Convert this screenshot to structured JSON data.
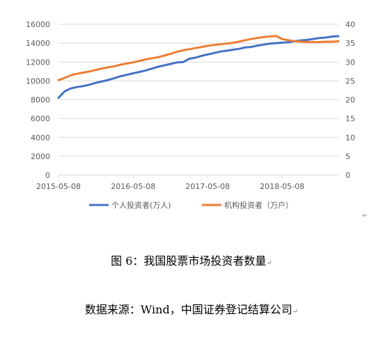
{
  "chart_data": {
    "type": "line",
    "x_ticks": [
      "2015-05-08",
      "2016-05-08",
      "2017-05-08",
      "2018-05-08"
    ],
    "x": [
      "2015-05-08",
      "2015-06-08",
      "2015-07-08",
      "2015-08-08",
      "2015-09-08",
      "2015-10-08",
      "2015-11-08",
      "2015-12-08",
      "2016-01-08",
      "2016-02-08",
      "2016-03-08",
      "2016-04-08",
      "2016-05-08",
      "2016-06-08",
      "2016-07-08",
      "2016-08-08",
      "2016-09-08",
      "2016-10-08",
      "2016-11-08",
      "2016-12-08",
      "2017-01-08",
      "2017-02-08",
      "2017-03-08",
      "2017-04-08",
      "2017-05-08",
      "2017-06-08",
      "2017-07-08",
      "2017-08-08",
      "2017-09-08",
      "2017-10-08",
      "2017-11-08",
      "2017-12-08",
      "2018-01-08",
      "2018-02-08",
      "2018-03-08",
      "2018-04-08",
      "2018-05-08",
      "2018-06-08",
      "2018-07-08",
      "2018-08-08",
      "2018-09-08",
      "2018-10-08",
      "2018-11-08",
      "2018-12-08",
      "2019-01-08",
      "2019-02-08"
    ],
    "y_left_ticks": [
      "0",
      "2000",
      "4000",
      "6000",
      "8000",
      "10000",
      "12000",
      "14000",
      "16000"
    ],
    "y_right_ticks": [
      "0",
      "5",
      "10",
      "15",
      "20",
      "25",
      "30",
      "35",
      "40"
    ],
    "ylim_left": [
      0,
      16000
    ],
    "ylim_right": [
      0,
      40
    ],
    "series": [
      {
        "name": "个人投资者(万人)",
        "axis": "left",
        "color": "#4472C4",
        "values": [
          8200,
          8900,
          9200,
          9350,
          9450,
          9600,
          9800,
          9950,
          10100,
          10300,
          10500,
          10650,
          10800,
          10950,
          11100,
          11300,
          11500,
          11650,
          11800,
          11950,
          12000,
          12350,
          12450,
          12650,
          12800,
          12950,
          13100,
          13200,
          13300,
          13400,
          13550,
          13600,
          13750,
          13850,
          13950,
          14000,
          14050,
          14100,
          14200,
          14300,
          14350,
          14450,
          14550,
          14600,
          14700,
          14750
        ]
      },
      {
        "name": "机构投资者（万户）",
        "axis": "right",
        "color": "#ED7D31",
        "values": [
          25.2,
          25.8,
          26.5,
          26.9,
          27.2,
          27.5,
          27.9,
          28.3,
          28.6,
          28.9,
          29.3,
          29.6,
          29.9,
          30.3,
          30.7,
          31.0,
          31.3,
          31.7,
          32.2,
          32.7,
          33.1,
          33.4,
          33.7,
          34.0,
          34.3,
          34.5,
          34.7,
          34.9,
          35.1,
          35.4,
          35.8,
          36.1,
          36.4,
          36.6,
          36.8,
          36.9,
          36.1,
          35.8,
          35.5,
          35.4,
          35.3,
          35.3,
          35.3,
          35.4,
          35.4,
          35.5
        ]
      }
    ],
    "legend_position": "bottom",
    "grid": "horizontal",
    "title": ""
  },
  "caption": "图 6：我国股票市场投资者数量",
  "source": "数据来源：Wind，中国证券登记结算公司",
  "return_mark": "↵",
  "colors": {
    "axis": "#d9d9d9",
    "grid": "#d9d9d9",
    "text": "#595959"
  }
}
